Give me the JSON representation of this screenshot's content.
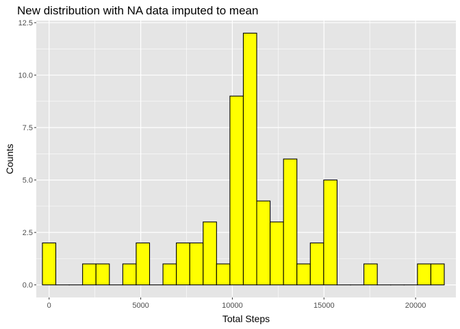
{
  "chart_data": {
    "type": "bar",
    "title": "New distribution with NA data imputed to mean",
    "xlabel": "Total Steps",
    "ylabel": "Counts",
    "xlim": [
      -700,
      22200
    ],
    "ylim": [
      -0.6,
      12.6
    ],
    "x_ticks": [
      0,
      5000,
      10000,
      15000,
      20000
    ],
    "x_tick_labels": [
      "0",
      "5000",
      "10000",
      "15000",
      "20000"
    ],
    "y_ticks": [
      0,
      2.5,
      5,
      7.5,
      10,
      12.5
    ],
    "y_tick_labels": [
      "0.0",
      "2.5",
      "5.0",
      "7.5",
      "10.0",
      "12.5"
    ],
    "bin_width": 731,
    "bin_centers": [
      0,
      731,
      1462,
      2193,
      2924,
      3655,
      4386,
      5117,
      5848,
      6579,
      7310,
      8041,
      8772,
      9503,
      10234,
      10965,
      11696,
      12427,
      13158,
      13889,
      14620,
      15351,
      16082,
      16813,
      17544,
      18275,
      19006,
      19737,
      20468,
      21199
    ],
    "values": [
      2,
      0,
      0,
      1,
      1,
      0,
      1,
      2,
      0,
      1,
      2,
      2,
      3,
      1,
      9,
      12,
      4,
      3,
      6,
      1,
      2,
      5,
      0,
      0,
      1,
      0,
      0,
      0,
      1,
      1
    ],
    "fill_color": "#ffff00",
    "outline_color": "#000000",
    "panel_background": "#e5e5e5",
    "grid": true,
    "grid_color": "#ffffff"
  }
}
